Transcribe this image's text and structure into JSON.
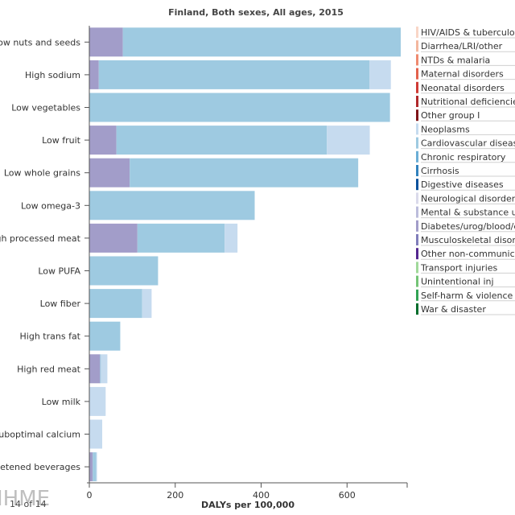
{
  "chart_data": {
    "type": "bar",
    "orientation": "horizontal",
    "stacked": true,
    "title": "Finland, Both sexes, All ages, 2015",
    "xlabel": "DALYs per 100,000",
    "xlim": [
      0,
      740
    ],
    "xticks": [
      0,
      200,
      400,
      600
    ],
    "categories": [
      "Low nuts and seeds",
      "High sodium",
      "Low vegetables",
      "Low fruit",
      "Low whole grains",
      "Low omega-3",
      "High processed meat",
      "Low PUFA",
      "Low fiber",
      "High trans fat",
      "High red meat",
      "Low milk",
      "Suboptimal calcium",
      "High sugar-sweetened beverages"
    ],
    "series": [
      {
        "name": "Diabetes/urog/blood/endo",
        "color": "#a29dc9",
        "values": [
          78,
          22,
          0,
          63,
          94,
          0,
          112,
          0,
          0,
          0,
          25,
          0,
          0,
          8
        ]
      },
      {
        "name": "Cardiovascular diseases",
        "color": "#9ecae1",
        "values": [
          647,
          630,
          700,
          490,
          532,
          385,
          203,
          160,
          123,
          72,
          2,
          0,
          0,
          8
        ]
      },
      {
        "name": "Neoplasms",
        "color": "#c6dbef",
        "values": [
          0,
          50,
          0,
          100,
          0,
          0,
          30,
          0,
          22,
          0,
          15,
          38,
          30,
          2
        ]
      }
    ],
    "legend": {
      "placement": "right",
      "entries": [
        {
          "label": "HIV/AIDS & tuberculosis",
          "color": "#f9d6c7"
        },
        {
          "label": "Diarrhea/LRI/other",
          "color": "#f4b79e"
        },
        {
          "label": "NTDs & malaria",
          "color": "#ef8a6f"
        },
        {
          "label": "Maternal disorders",
          "color": "#e3614c"
        },
        {
          "label": "Neonatal disorders",
          "color": "#cf3b35"
        },
        {
          "label": "Nutritional deficiencies",
          "color": "#b0282b"
        },
        {
          "label": "Other group I",
          "color": "#7f1318"
        },
        {
          "label": "Neoplasms",
          "color": "#c6dbef"
        },
        {
          "label": "Cardiovascular diseases",
          "color": "#9ecae1"
        },
        {
          "label": "Chronic respiratory",
          "color": "#6baed6"
        },
        {
          "label": "Cirrhosis",
          "color": "#3182bd"
        },
        {
          "label": "Digestive diseases",
          "color": "#08519c"
        },
        {
          "label": "Neurological disorders",
          "color": "#dadaeb"
        },
        {
          "label": "Mental & substance use",
          "color": "#bcbddc"
        },
        {
          "label": "Diabetes/urog/blood/endo",
          "color": "#a29dc9"
        },
        {
          "label": "Musculoskeletal disorders",
          "color": "#807dba"
        },
        {
          "label": "Other non-communicable",
          "color": "#54278f"
        },
        {
          "label": "Transport injuries",
          "color": "#a1d99b"
        },
        {
          "label": "Unintentional inj",
          "color": "#74c476"
        },
        {
          "label": "Self-harm & violence",
          "color": "#31a354"
        },
        {
          "label": "War & disaster",
          "color": "#006d2c"
        }
      ]
    }
  },
  "watermark": "IHME",
  "pager": "14 of 14"
}
